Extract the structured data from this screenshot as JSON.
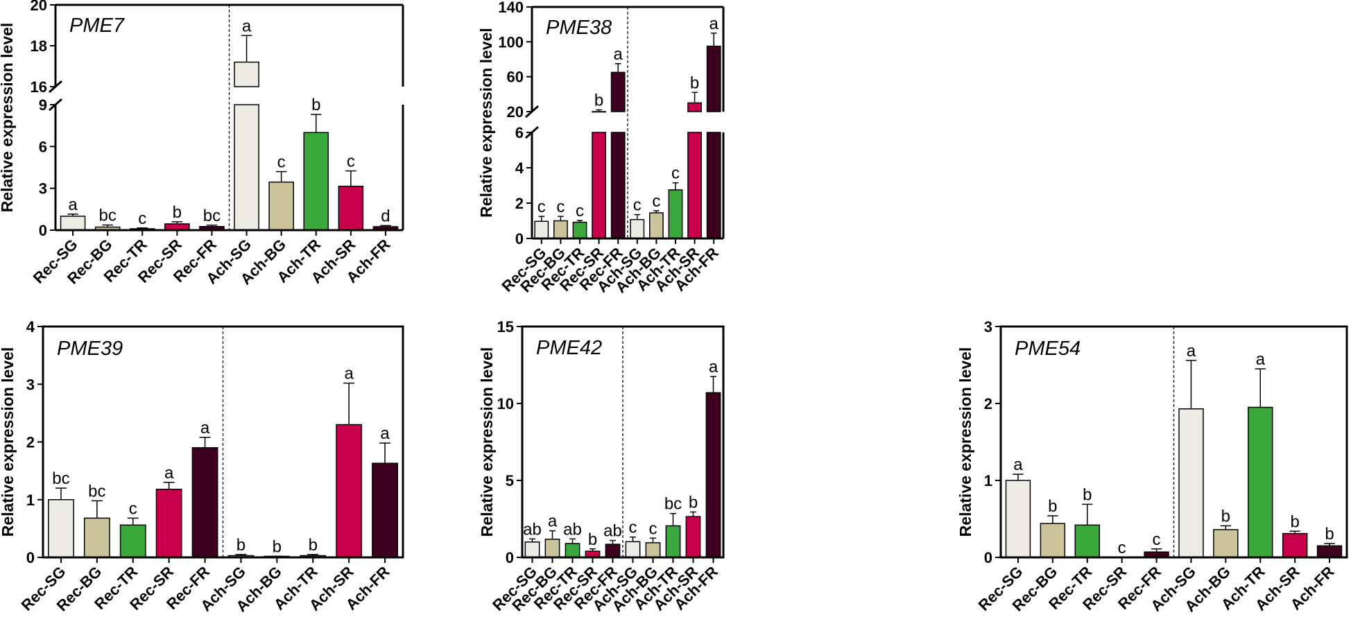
{
  "colors": {
    "SG": "#ecebe4",
    "BG": "#cbc39c",
    "TR": "#3aa83c",
    "SR": "#c8004b",
    "FR": "#3d0020"
  },
  "chart_data": [
    {
      "type": "bar",
      "title": "PME7",
      "ylabel": "Relative expression level",
      "categories": [
        "Rec-SG",
        "Rec-BG",
        "Rec-TR",
        "Rec-SR",
        "Rec-FR",
        "Ach-SG",
        "Ach-BG",
        "Ach-TR",
        "Ach-SR",
        "Ach-FR"
      ],
      "values": [
        1.0,
        0.22,
        0.1,
        0.45,
        0.26,
        17.2,
        3.45,
        7.0,
        3.15,
        0.25
      ],
      "errors": [
        0.15,
        0.15,
        0.06,
        0.15,
        0.1,
        1.3,
        0.75,
        1.3,
        1.1,
        0.08
      ],
      "letters": [
        "a",
        "bc",
        "c",
        "b",
        "bc",
        "a",
        "c",
        "b",
        "c",
        "d"
      ],
      "axis_break": {
        "lower": [
          0,
          9
        ],
        "upper": [
          16,
          20
        ]
      },
      "yticks": [
        "0",
        "3",
        "6",
        "9",
        "16",
        "18",
        "20"
      ]
    },
    {
      "type": "bar",
      "title": "PME38",
      "ylabel": "Relative expression level",
      "categories": [
        "Rec-SG",
        "Rec-BG",
        "Rec-TR",
        "Rec-SR",
        "Rec-FR",
        "Ach-SG",
        "Ach-BG",
        "Ach-TR",
        "Ach-SR",
        "Ach-FR"
      ],
      "values": [
        0.97,
        1.0,
        0.92,
        20.0,
        65.0,
        1.07,
        1.45,
        2.75,
        30.0,
        95.0
      ],
      "errors": [
        0.28,
        0.25,
        0.1,
        2.0,
        10.0,
        0.28,
        0.12,
        0.4,
        12.0,
        15.0
      ],
      "letters": [
        "c",
        "c",
        "c",
        "b",
        "a",
        "c",
        "c",
        "c",
        "b",
        "a"
      ],
      "axis_break": {
        "lower": [
          0,
          6
        ],
        "upper": [
          20,
          140
        ]
      },
      "yticks": [
        "0",
        "2",
        "4",
        "6",
        "20",
        "60",
        "100",
        "140"
      ]
    },
    {
      "type": "bar",
      "title": "PME39",
      "ylabel": "Relative expression level",
      "categories": [
        "Rec-SG",
        "Rec-BG",
        "Rec-TR",
        "Rec-SR",
        "Rec-FR",
        "Ach-SG",
        "Ach-BG",
        "Ach-TR",
        "Ach-SR",
        "Ach-FR"
      ],
      "values": [
        1.0,
        0.68,
        0.56,
        1.18,
        1.9,
        0.03,
        0.01,
        0.03,
        2.3,
        1.63
      ],
      "errors": [
        0.2,
        0.3,
        0.12,
        0.12,
        0.18,
        0.02,
        0.01,
        0.02,
        0.72,
        0.35
      ],
      "letters": [
        "bc",
        "bc",
        "c",
        "a",
        "a",
        "b",
        "b",
        "b",
        "a",
        "a"
      ],
      "ylim": [
        0,
        4
      ],
      "yticks": [
        "0",
        "1",
        "2",
        "3",
        "4"
      ]
    },
    {
      "type": "bar",
      "title": "PME42",
      "ylabel": "Relative expression level",
      "categories": [
        "Rec-SG",
        "Rec-BG",
        "Rec-TR",
        "Rec-SR",
        "Rec-FR",
        "Ach-SG",
        "Ach-BG",
        "Ach-TR",
        "Ach-SR",
        "Ach-FR"
      ],
      "values": [
        1.0,
        1.18,
        0.9,
        0.4,
        0.85,
        1.02,
        0.95,
        2.05,
        2.65,
        10.7
      ],
      "errors": [
        0.2,
        0.55,
        0.3,
        0.15,
        0.25,
        0.3,
        0.3,
        0.8,
        0.3,
        1.05
      ],
      "letters": [
        "ab",
        "a",
        "ab",
        "b",
        "ab",
        "c",
        "c",
        "bc",
        "b",
        "a"
      ],
      "ylim": [
        0,
        15
      ],
      "yticks": [
        "0",
        "5",
        "10",
        "15"
      ]
    },
    {
      "type": "bar",
      "title": "PME54",
      "ylabel": "Relative expression level",
      "categories": [
        "Rec-SG",
        "Rec-BG",
        "Rec-TR",
        "Rec-SR",
        "Rec-FR",
        "Ach-SG",
        "Ach-BG",
        "Ach-TR",
        "Ach-SR",
        "Ach-FR"
      ],
      "values": [
        1.0,
        0.44,
        0.42,
        0.0,
        0.07,
        1.93,
        0.36,
        1.95,
        0.31,
        0.15
      ],
      "errors": [
        0.08,
        0.1,
        0.27,
        0.0,
        0.04,
        0.63,
        0.05,
        0.5,
        0.03,
        0.03
      ],
      "letters": [
        "a",
        "b",
        "b",
        "c",
        "c",
        "a",
        "b",
        "a",
        "b",
        "b"
      ],
      "ylim": [
        0,
        3
      ],
      "yticks": [
        "0",
        "1",
        "2",
        "3"
      ]
    }
  ]
}
